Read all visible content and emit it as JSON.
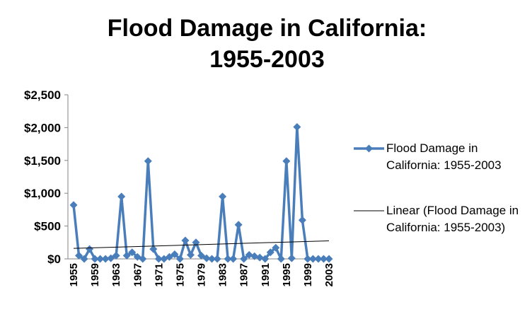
{
  "chart_data": {
    "type": "line",
    "title": "Flood Damage in California: 1955-2003",
    "categories": [
      "1955",
      null,
      null,
      null,
      "1959",
      null,
      null,
      null,
      "1963",
      null,
      null,
      null,
      "1967",
      null,
      null,
      null,
      "1971",
      null,
      null,
      null,
      "1975",
      null,
      null,
      null,
      "1979",
      null,
      null,
      null,
      "1983",
      null,
      null,
      null,
      "1987",
      null,
      null,
      null,
      "1991",
      null,
      null,
      null,
      "1995",
      null,
      null,
      null,
      "1999",
      null,
      null,
      null,
      "2003"
    ],
    "series": [
      {
        "name": "Flood Damage in California: 1955-2003",
        "color": "#4a7ebb",
        "values": [
          820,
          50,
          0,
          150,
          0,
          0,
          0,
          10,
          50,
          950,
          50,
          100,
          30,
          0,
          1490,
          150,
          0,
          0,
          30,
          70,
          0,
          280,
          60,
          250,
          50,
          10,
          0,
          0,
          950,
          0,
          0,
          520,
          0,
          60,
          40,
          20,
          0,
          100,
          170,
          0,
          1490,
          10,
          2010,
          590,
          0,
          0,
          0,
          0,
          0
        ]
      }
    ],
    "trendline": {
      "name": "Linear (Flood Damage in California: 1955-2003)",
      "color": "#000000",
      "values": [
        160,
        275
      ]
    },
    "ylim": [
      0,
      2500
    ],
    "yticks": [
      {
        "value": 0,
        "label": "$0"
      },
      {
        "value": 500,
        "label": "$500"
      },
      {
        "value": 1000,
        "label": "$1,000"
      },
      {
        "value": 1500,
        "label": "$1,500"
      },
      {
        "value": 2000,
        "label": "$2,000"
      },
      {
        "value": 2500,
        "label": "$2,500"
      }
    ],
    "grid": false,
    "legend": "right"
  }
}
